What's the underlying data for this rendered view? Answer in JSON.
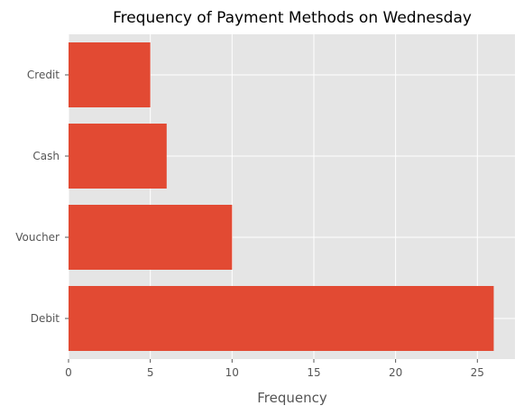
{
  "chart_data": {
    "type": "bar",
    "orientation": "horizontal",
    "title": "Frequency of Payment Methods on Wednesday",
    "xlabel": "Frequency",
    "ylabel": "",
    "categories": [
      "Debit",
      "Voucher",
      "Cash",
      "Credit"
    ],
    "values": [
      26,
      10,
      6,
      5
    ],
    "xlim": [
      0,
      27.3
    ],
    "xticks": [
      0,
      5,
      10,
      15,
      20,
      25
    ],
    "grid": true,
    "colors": {
      "bar": "#E24A33",
      "plot_background": "#E5E5E5",
      "grid": "#FFFFFF"
    }
  }
}
